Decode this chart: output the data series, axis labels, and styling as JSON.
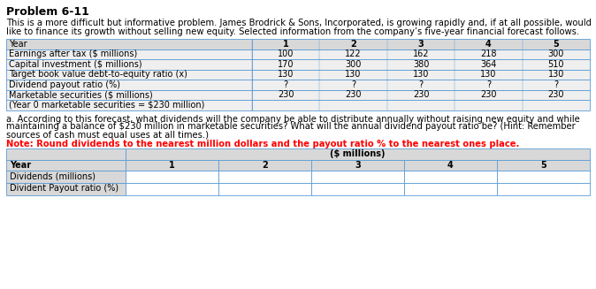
{
  "title": "Problem 6-11",
  "intro_line1": "This is a more difficult but informative problem. James Brodrick & Sons, Incorporated, is growing rapidly and, if at all possible, would",
  "intro_line2": "like to finance its growth without selling new equity. Selected information from the company’s five-year financial forecast follows.",
  "table1_row_labels": [
    "Year",
    "Earnings after tax ($ millions)",
    "Capital investment ($ millions)",
    "Target book value debt-to-equity ratio (x)",
    "Dividend payout ratio (%)",
    "Marketable securities ($ millions)",
    "(Year 0 marketable securities = $230 million)"
  ],
  "table1_col_headers": [
    "1",
    "2",
    "3",
    "4",
    "5"
  ],
  "table1_data": [
    [
      "100",
      "122",
      "162",
      "218",
      "300"
    ],
    [
      "170",
      "300",
      "380",
      "364",
      "510"
    ],
    [
      "130",
      "130",
      "130",
      "130",
      "130"
    ],
    [
      "?",
      "?",
      "?",
      "?",
      "?"
    ],
    [
      "230",
      "230",
      "230",
      "230",
      "230"
    ],
    [
      "",
      "",
      "",
      "",
      ""
    ]
  ],
  "question_line1": "a. According to this forecast, what dividends will the company be able to distribute annually without raising new equity and while",
  "question_line2": "maintaining a balance of $230 million in marketable securities? What will the annual dividend payout ratio be? (Hint: Remember",
  "question_line3": "sources of cash must equal uses at all times.)",
  "note_text": "Note: Round dividends to the nearest million dollars and the payout ratio % to the nearest ones place.",
  "table2_header_merged": "($ millions)",
  "table2_year_label": "Year",
  "table2_col_headers": [
    "1",
    "2",
    "3",
    "4",
    "5"
  ],
  "table2_row_labels": [
    "Dividends (millions)",
    "Divident Payout ratio (%)"
  ],
  "bg_color": "#ffffff",
  "t1_header_bg": "#d8d8d8",
  "t1_row_bg": "#efefef",
  "t2_header_bg": "#d8d8d8",
  "t2_data_bg": "#ffffff",
  "border_color": "#5b9bd5",
  "note_color": "#ff0000",
  "title_fs": 9,
  "body_fs": 7.2,
  "table_fs": 7.0
}
